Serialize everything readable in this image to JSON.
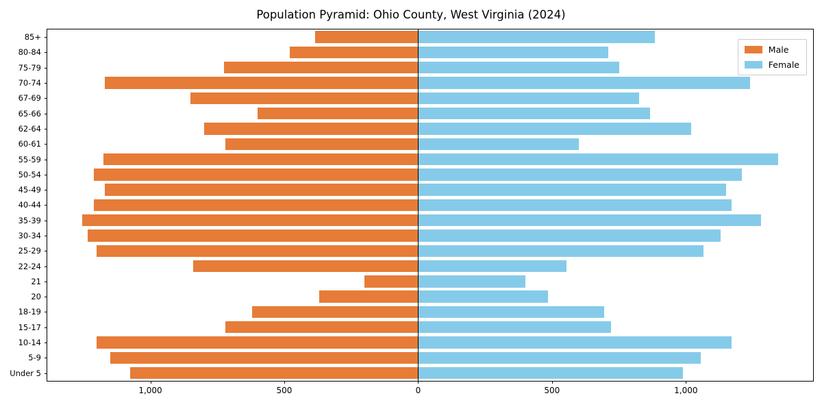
{
  "title": "Population Pyramid: Ohio County, West Virginia (2024)",
  "legend": {
    "male_label": "Male",
    "female_label": "Female"
  },
  "colors": {
    "male": "#e67c37",
    "female": "#85cbe9",
    "axis": "#000000",
    "legend_border": "#cccccc"
  },
  "chart_data": {
    "type": "bar",
    "variant": "population-pyramid",
    "title": "Population Pyramid: Ohio County, West Virginia (2024)",
    "categories": [
      "85+",
      "80-84",
      "75-79",
      "70-74",
      "67-69",
      "65-66",
      "62-64",
      "60-61",
      "55-59",
      "50-54",
      "45-49",
      "40-44",
      "35-39",
      "30-34",
      "25-29",
      "22-24",
      "21",
      "20",
      "18-19",
      "15-17",
      "10-14",
      "5-9",
      "Under 5"
    ],
    "series": [
      {
        "name": "Male",
        "side": "left",
        "color": "#e67c37",
        "values": [
          385,
          480,
          725,
          1170,
          850,
          600,
          800,
          720,
          1175,
          1210,
          1170,
          1210,
          1255,
          1235,
          1200,
          840,
          200,
          370,
          620,
          720,
          1200,
          1150,
          1075
        ]
      },
      {
        "name": "Female",
        "side": "right",
        "color": "#85cbe9",
        "values": [
          885,
          710,
          750,
          1240,
          825,
          865,
          1020,
          600,
          1345,
          1210,
          1150,
          1170,
          1280,
          1130,
          1065,
          555,
          400,
          485,
          695,
          720,
          1170,
          1055,
          990
        ]
      }
    ],
    "xlim": [
      -1385,
      1475
    ],
    "x_ticks": [
      {
        "value": -1000,
        "label": "1,000"
      },
      {
        "value": -500,
        "label": "500"
      },
      {
        "value": 0,
        "label": "0"
      },
      {
        "value": 500,
        "label": "500"
      },
      {
        "value": 1000,
        "label": "1,000"
      }
    ],
    "xlabel": "",
    "ylabel": "",
    "grid": false,
    "legend_position": "upper right",
    "legend_entries": [
      "Male",
      "Female"
    ]
  }
}
